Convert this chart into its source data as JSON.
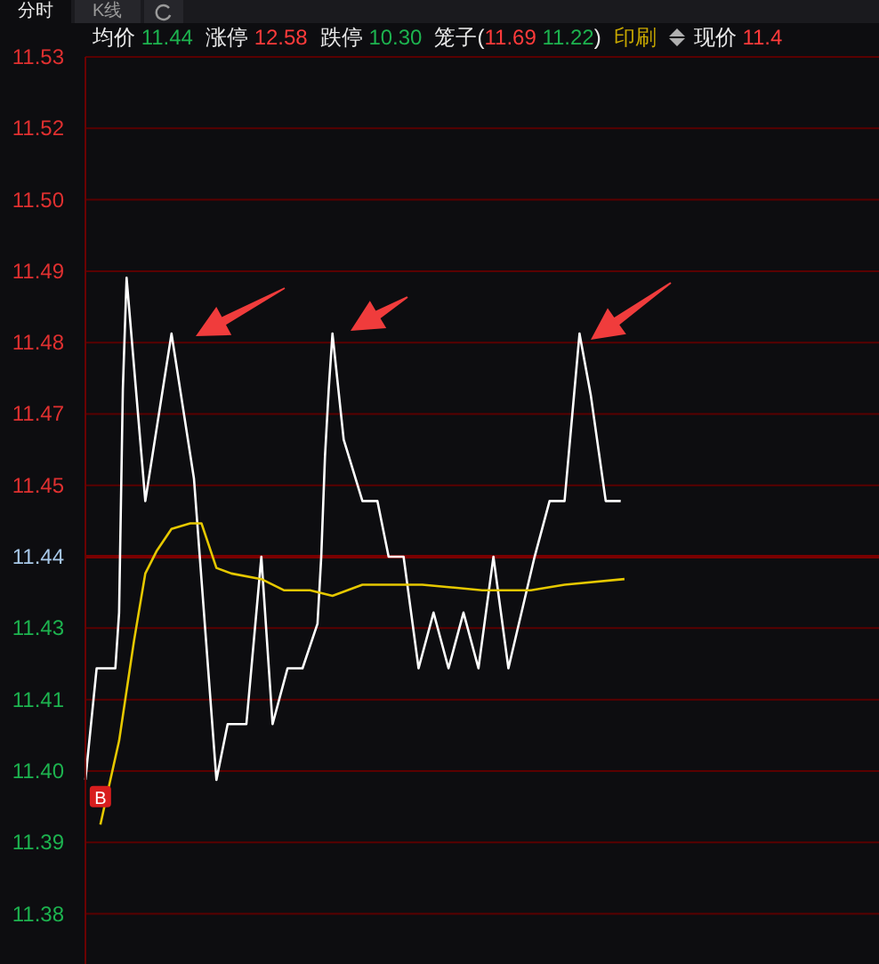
{
  "chart_data": {
    "type": "line",
    "annotations": [
      "分时",
      "K线",
      "均价 11.44",
      "涨停 12.58",
      "跌停 10.30",
      "笼子(11.69 11.22)",
      "印刷",
      "现价 11.4",
      {
        "text": "B",
        "y": 11.397
      }
    ],
    "categories": [
      null,
      null,
      null,
      null,
      null,
      null,
      null,
      null,
      null,
      null,
      null,
      null,
      null,
      null,
      null,
      null,
      null,
      null,
      null,
      null,
      null,
      null,
      null,
      null,
      null,
      null,
      null,
      null,
      null,
      null,
      null,
      null,
      null,
      null,
      null,
      null,
      null,
      null,
      null,
      null,
      null,
      null,
      null,
      null,
      null,
      null,
      null,
      null,
      null,
      null,
      null,
      null,
      null,
      null,
      null,
      null,
      null,
      null,
      null,
      null,
      null,
      null,
      null,
      null,
      null,
      null,
      null,
      null,
      null,
      null,
      null,
      null,
      null,
      null,
      null,
      null,
      null,
      null,
      null,
      null,
      null,
      null,
      null,
      null,
      null,
      null,
      null,
      null,
      null,
      null,
      null,
      null,
      null,
      null,
      null,
      null,
      null,
      null,
      null,
      null,
      null,
      null,
      null,
      null,
      null,
      null,
      null,
      null,
      null,
      null,
      null,
      null,
      null,
      null,
      null,
      null,
      null,
      null,
      null,
      null,
      null,
      null,
      null,
      null,
      null,
      null,
      null,
      null,
      null,
      null,
      null,
      null,
      null,
      null,
      null,
      null,
      null,
      null,
      null,
      null,
      null,
      null,
      null,
      null,
      null,
      null,
      null,
      null,
      null,
      null,
      null,
      null,
      null,
      null,
      null,
      null,
      null,
      null,
      null,
      null,
      null,
      null,
      null,
      null,
      null,
      null,
      null,
      null,
      null,
      null,
      null,
      null,
      null,
      null,
      null,
      null,
      null,
      null,
      null,
      null,
      null,
      null,
      null,
      null,
      null,
      null,
      null,
      null,
      null,
      null,
      null,
      null,
      null,
      null,
      null,
      null,
      null,
      null,
      null,
      null,
      null,
      null,
      null,
      null,
      null,
      null,
      null,
      null,
      null,
      null,
      null,
      null,
      null
    ],
    "ylim": [
      11.367,
      11.5296
    ],
    "yticks": [
      {
        "value": 11.376,
        "label": "11.38"
      },
      {
        "value": 11.3888,
        "label": "11.39"
      },
      {
        "value": 11.4016,
        "label": "11.40"
      },
      {
        "value": 11.4144,
        "label": "11.41"
      },
      {
        "value": 11.4272,
        "label": "11.43"
      },
      {
        "value": 11.44,
        "label": "11.44"
      },
      {
        "value": 11.4528,
        "label": "11.45"
      },
      {
        "value": 11.4656,
        "label": "11.47"
      },
      {
        "value": 11.4784,
        "label": "11.48"
      },
      {
        "value": 11.4912,
        "label": "11.49"
      },
      {
        "value": 11.504,
        "label": "11.50"
      },
      {
        "value": 11.5168,
        "label": "11.52"
      },
      {
        "value": 11.5296,
        "label": "11.53"
      }
    ],
    "tick_labels": "y",
    "grid": "y",
    "ref_lines": [
      {
        "axis": "y",
        "value": 11.44,
        "color": "#7a0000",
        "line_style": "solid"
      }
    ],
    "series": [
      {
        "color": "#ffffff",
        "values": [
          11.4,
          null,
          null,
          11.42,
          null,
          null,
          null,
          null,
          11.42,
          11.43,
          11.47,
          11.49,
          null,
          null,
          null,
          null,
          11.45,
          null,
          null,
          null,
          null,
          null,
          null,
          11.48,
          null,
          null,
          null,
          null,
          null,
          11.454,
          null,
          null,
          null,
          null,
          null,
          11.4,
          null,
          null,
          11.41,
          null,
          null,
          null,
          null,
          11.41,
          null,
          null,
          null,
          11.44,
          null,
          null,
          11.41,
          null,
          null,
          null,
          11.42,
          null,
          null,
          null,
          11.42,
          null,
          null,
          null,
          11.428,
          11.44,
          11.458,
          11.47,
          11.48,
          null,
          null,
          11.461,
          null,
          null,
          null,
          null,
          11.45,
          null,
          null,
          null,
          11.45,
          null,
          null,
          11.44,
          null,
          null,
          null,
          11.44,
          null,
          null,
          null,
          11.42,
          null,
          null,
          null,
          11.43,
          null,
          null,
          null,
          11.42,
          null,
          null,
          null,
          11.43,
          null,
          null,
          null,
          11.42,
          null,
          null,
          null,
          11.44,
          null,
          null,
          null,
          11.42,
          null,
          null,
          null,
          null,
          null,
          null,
          11.44,
          null,
          null,
          null,
          11.45,
          null,
          null,
          null,
          11.45,
          null,
          null,
          null,
          11.48,
          null,
          null,
          11.469,
          null,
          null,
          null,
          11.45,
          null,
          null,
          null,
          11.45,
          null,
          null,
          null,
          null,
          null,
          null,
          null,
          null,
          null,
          null,
          null,
          null,
          null,
          null,
          null,
          null,
          null,
          null,
          null,
          null,
          null,
          null,
          null,
          null,
          null,
          null,
          null,
          null,
          null,
          null,
          null,
          null,
          null,
          null,
          null,
          null,
          null,
          null,
          null,
          null,
          null,
          null,
          null,
          null,
          null,
          null,
          null,
          null,
          null,
          null,
          null,
          null,
          null,
          null,
          null,
          null,
          null,
          null,
          null,
          null,
          null,
          null,
          null,
          null,
          null,
          null,
          null,
          null,
          null
        ]
      },
      {
        "color": "#e6c800",
        "values": [
          null,
          null,
          null,
          null,
          11.392,
          null,
          null,
          null,
          null,
          11.407,
          null,
          null,
          null,
          11.425,
          null,
          null,
          11.437,
          null,
          null,
          11.441,
          null,
          null,
          null,
          11.445,
          null,
          null,
          null,
          null,
          11.446,
          null,
          null,
          11.446,
          null,
          null,
          null,
          11.438,
          null,
          null,
          null,
          11.437,
          null,
          null,
          null,
          null,
          null,
          null,
          null,
          11.436,
          null,
          null,
          null,
          null,
          null,
          11.434,
          null,
          null,
          null,
          null,
          null,
          null,
          11.434,
          null,
          null,
          null,
          null,
          null,
          11.433,
          null,
          null,
          null,
          null,
          null,
          null,
          null,
          11.435,
          null,
          null,
          null,
          null,
          null,
          null,
          null,
          null,
          null,
          null,
          null,
          null,
          null,
          null,
          null,
          11.435,
          null,
          null,
          null,
          null,
          null,
          null,
          null,
          null,
          null,
          null,
          null,
          null,
          null,
          null,
          null,
          11.434,
          null,
          null,
          null,
          null,
          null,
          null,
          null,
          null,
          null,
          null,
          null,
          null,
          11.434,
          null,
          null,
          null,
          null,
          null,
          null,
          null,
          null,
          11.435,
          null,
          null,
          null,
          null,
          null,
          null,
          null,
          null,
          null,
          null,
          null,
          null,
          null,
          null,
          null,
          11.436,
          null,
          null,
          null,
          null,
          null,
          null,
          null,
          null,
          null,
          null,
          null,
          null,
          null,
          null,
          null,
          null,
          null,
          null,
          null,
          null,
          null,
          null,
          null,
          null,
          null,
          null,
          null,
          null,
          null,
          null,
          null,
          null,
          null,
          null,
          null,
          null,
          null,
          null,
          null,
          null,
          null,
          null,
          null,
          null,
          null,
          null,
          null,
          null,
          null,
          null,
          null,
          null,
          null,
          null,
          null,
          null,
          null,
          null,
          null,
          null,
          null,
          null,
          null,
          null,
          null,
          null,
          null,
          null
        ]
      }
    ]
  }
}
